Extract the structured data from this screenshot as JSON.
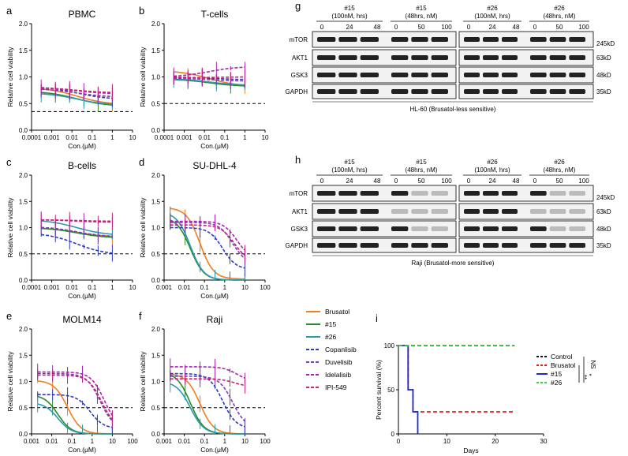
{
  "panels": [
    {
      "id": "pA",
      "label": "a",
      "title": "PBMC",
      "ylabel": "Relative cell viability",
      "xlabel": "Con.(μM)",
      "xscale": "log",
      "xticks": [
        "0.0001",
        "0.001",
        "0.01",
        "0.1",
        "1",
        "10"
      ],
      "xrange": [
        0.0001,
        10
      ],
      "yticks": [
        "0.0",
        "0.5",
        "1.0",
        "1.5",
        "2.0"
      ],
      "yrange": [
        0,
        2.0
      ],
      "dashed_y": 0.35
    },
    {
      "id": "pB",
      "label": "b",
      "title": "T-cells",
      "ylabel": "Relative cell viability",
      "xlabel": "Con.(μM)",
      "xscale": "log",
      "xticks": [
        "0.0001",
        "0.001",
        "0.01",
        "0.1",
        "1",
        "10"
      ],
      "xrange": [
        0.0001,
        10
      ],
      "yticks": [
        "0.0",
        "0.5",
        "1.0",
        "1.5",
        "2.0"
      ],
      "yrange": [
        0,
        2.0
      ],
      "dashed_y": 0.5
    },
    {
      "id": "pC",
      "label": "c",
      "title": "B-cells",
      "ylabel": "Relative cell viability",
      "xlabel": "Con.(μM)",
      "xscale": "log",
      "xticks": [
        "0.0001",
        "0.001",
        "0.01",
        "0.1",
        "1",
        "10"
      ],
      "xrange": [
        0.0001,
        10
      ],
      "yticks": [
        "0.0",
        "0.5",
        "1.0",
        "1.5",
        "2.0"
      ],
      "yrange": [
        0,
        2.0
      ],
      "dashed_y": 0.5
    },
    {
      "id": "pD",
      "label": "d",
      "title": "SU-DHL-4",
      "ylabel": "Relative cell viability",
      "xlabel": "Con.(μM)",
      "xscale": "log",
      "xticks": [
        "0.001",
        "0.01",
        "0.1",
        "1",
        "10",
        "100"
      ],
      "xrange": [
        0.001,
        100
      ],
      "yticks": [
        "0.0",
        "0.5",
        "1.0",
        "1.5",
        "2.0"
      ],
      "yrange": [
        0,
        2.0
      ],
      "dashed_y": 0.5
    },
    {
      "id": "pE",
      "label": "e",
      "title": "MOLM14",
      "ylabel": "Relative cell viability",
      "xlabel": "Con.(μM)",
      "xscale": "log",
      "xticks": [
        "0.001",
        "0.01",
        "0.1",
        "1",
        "10",
        "100"
      ],
      "xrange": [
        0.001,
        100
      ],
      "yticks": [
        "0.0",
        "0.5",
        "1.0",
        "1.5",
        "2.0"
      ],
      "yrange": [
        0,
        2.0
      ],
      "dashed_y": 0.5
    },
    {
      "id": "pF",
      "label": "f",
      "title": "Raji",
      "ylabel": "Relative cell viability",
      "xlabel": "Con.(μM)",
      "xscale": "log",
      "xticks": [
        "0.001",
        "0.01",
        "0.1",
        "1",
        "10",
        "100"
      ],
      "xrange": [
        0.001,
        100
      ],
      "yticks": [
        "0.0",
        "0.5",
        "1.0",
        "1.5",
        "2.0"
      ],
      "yrange": [
        0,
        2.0
      ],
      "dashed_y": 0.5
    }
  ],
  "chart_data": [
    {
      "type": "line",
      "panel": "a",
      "title": "PBMC",
      "xlabel": "Con.(μM)",
      "ylabel": "Relative cell viability",
      "series": [
        {
          "name": "Brusatol",
          "x": [
            0.0003,
            1
          ],
          "y": [
            0.8,
            0.48
          ]
        },
        {
          "name": "#15",
          "x": [
            0.0003,
            1
          ],
          "y": [
            0.73,
            0.45
          ]
        },
        {
          "name": "#26",
          "x": [
            0.0003,
            1
          ],
          "y": [
            0.7,
            0.47
          ]
        },
        {
          "name": "Copanlisib",
          "x": [
            0.0003,
            1
          ],
          "y": [
            0.82,
            0.58
          ]
        },
        {
          "name": "Duvelisib",
          "x": [
            0.0003,
            1
          ],
          "y": [
            0.78,
            0.62
          ]
        },
        {
          "name": "Idelalisib",
          "x": [
            0.0003,
            1
          ],
          "y": [
            0.8,
            0.68
          ]
        },
        {
          "name": "IPI-549",
          "x": [
            0.0003,
            1
          ],
          "y": [
            0.8,
            0.7
          ]
        }
      ]
    },
    {
      "type": "line",
      "panel": "b",
      "title": "T-cells",
      "xlabel": "Con.(μM)",
      "ylabel": "Relative cell viability",
      "series": [
        {
          "name": "Brusatol",
          "x": [
            0.0003,
            1
          ],
          "y": [
            1.12,
            0.82
          ]
        },
        {
          "name": "#15",
          "x": [
            0.0003,
            1
          ],
          "y": [
            0.96,
            0.82
          ]
        },
        {
          "name": "#26",
          "x": [
            0.0003,
            1
          ],
          "y": [
            0.97,
            0.84
          ]
        },
        {
          "name": "Copanlisib",
          "x": [
            0.0003,
            1
          ],
          "y": [
            1.0,
            0.95
          ]
        },
        {
          "name": "Duvelisib",
          "x": [
            0.0003,
            1
          ],
          "y": [
            0.98,
            0.92
          ]
        },
        {
          "name": "Idelalisib",
          "x": [
            0.0003,
            1
          ],
          "y": [
            1.0,
            1.2
          ]
        },
        {
          "name": "IPI-549",
          "x": [
            0.0003,
            1
          ],
          "y": [
            0.98,
            1.0
          ]
        }
      ]
    },
    {
      "type": "line",
      "panel": "c",
      "title": "B-cells",
      "xlabel": "Con.(μM)",
      "ylabel": "Relative cell viability",
      "series": [
        {
          "name": "Brusatol",
          "x": [
            0.0003,
            1
          ],
          "y": [
            1.0,
            0.82
          ]
        },
        {
          "name": "#15",
          "x": [
            0.0003,
            1
          ],
          "y": [
            1.0,
            0.8
          ]
        },
        {
          "name": "#26",
          "x": [
            0.0003,
            1
          ],
          "y": [
            1.15,
            0.85
          ]
        },
        {
          "name": "Copanlisib",
          "x": [
            0.0003,
            1
          ],
          "y": [
            0.9,
            0.48
          ]
        },
        {
          "name": "Duvelisib",
          "x": [
            0.0003,
            1
          ],
          "y": [
            1.02,
            0.82
          ]
        },
        {
          "name": "Idelalisib",
          "x": [
            0.0003,
            1
          ],
          "y": [
            1.15,
            1.1
          ]
        },
        {
          "name": "IPI-549",
          "x": [
            0.0003,
            1
          ],
          "y": [
            1.15,
            1.12
          ]
        }
      ]
    },
    {
      "type": "line",
      "panel": "d",
      "title": "SU-DHL-4",
      "xlabel": "Con.(μM)",
      "ylabel": "Relative cell viability",
      "series": [
        {
          "name": "Brusatol",
          "x": [
            0.002,
            10
          ],
          "y": [
            1.38,
            0.02
          ]
        },
        {
          "name": "#15",
          "x": [
            0.002,
            10
          ],
          "y": [
            1.2,
            0.0
          ]
        },
        {
          "name": "#26",
          "x": [
            0.002,
            10
          ],
          "y": [
            1.3,
            0.0
          ]
        },
        {
          "name": "Copanlisib",
          "x": [
            0.002,
            10
          ],
          "y": [
            1.0,
            0.2
          ]
        },
        {
          "name": "Duvelisib",
          "x": [
            0.002,
            10
          ],
          "y": [
            1.1,
            0.3
          ]
        },
        {
          "name": "Idelalisib",
          "x": [
            0.002,
            10
          ],
          "y": [
            1.12,
            0.4
          ]
        },
        {
          "name": "IPI-549",
          "x": [
            0.002,
            10
          ],
          "y": [
            1.05,
            0.35
          ]
        }
      ]
    },
    {
      "type": "line",
      "panel": "e",
      "title": "MOLM14",
      "xlabel": "Con.(μM)",
      "ylabel": "Relative cell viability",
      "series": [
        {
          "name": "Brusatol",
          "x": [
            0.002,
            10
          ],
          "y": [
            1.02,
            0.0
          ]
        },
        {
          "name": "#15",
          "x": [
            0.002,
            10
          ],
          "y": [
            0.75,
            0.0
          ]
        },
        {
          "name": "#26",
          "x": [
            0.002,
            10
          ],
          "y": [
            0.6,
            0.0
          ]
        },
        {
          "name": "Copanlisib",
          "x": [
            0.002,
            10
          ],
          "y": [
            0.75,
            0.1
          ]
        },
        {
          "name": "Duvelisib",
          "x": [
            0.002,
            10
          ],
          "y": [
            1.15,
            0.1
          ]
        },
        {
          "name": "Idelalisib",
          "x": [
            0.002,
            10
          ],
          "y": [
            1.18,
            0.1
          ]
        },
        {
          "name": "IPI-549",
          "x": [
            0.002,
            10
          ],
          "y": [
            1.12,
            0.1
          ]
        }
      ]
    },
    {
      "type": "line",
      "panel": "f",
      "title": "Raji",
      "xlabel": "Con.(μM)",
      "ylabel": "Relative cell viability",
      "series": [
        {
          "name": "Brusatol",
          "x": [
            0.002,
            10
          ],
          "y": [
            1.15,
            0.0
          ]
        },
        {
          "name": "#15",
          "x": [
            0.002,
            10
          ],
          "y": [
            1.18,
            0.0
          ]
        },
        {
          "name": "#26",
          "x": [
            0.002,
            10
          ],
          "y": [
            1.0,
            0.0
          ]
        },
        {
          "name": "Copanlisib",
          "x": [
            0.002,
            10
          ],
          "y": [
            1.15,
            0.1
          ]
        },
        {
          "name": "Duvelisib",
          "x": [
            0.002,
            10
          ],
          "y": [
            1.1,
            0.1
          ]
        },
        {
          "name": "Idelalisib",
          "x": [
            0.002,
            10
          ],
          "y": [
            1.28,
            1.0
          ]
        },
        {
          "name": "IPI-549",
          "x": [
            0.002,
            10
          ],
          "y": [
            1.05,
            0.9
          ]
        }
      ]
    },
    {
      "type": "line",
      "panel": "i",
      "title": "",
      "xlabel": "Days",
      "ylabel": "Percent survival (%)",
      "xlim": [
        0,
        30
      ],
      "ylim": [
        0,
        100
      ],
      "xticks": [
        "0",
        "10",
        "20",
        "30"
      ],
      "yticks": [
        "0",
        "50",
        "100"
      ],
      "series": [
        {
          "name": "Control",
          "x": [
            0,
            24
          ],
          "y": [
            100,
            100
          ]
        },
        {
          "name": "Brusatol",
          "x": [
            0,
            2,
            2,
            3,
            3,
            24
          ],
          "y": [
            100,
            100,
            50,
            50,
            25,
            25
          ]
        },
        {
          "name": "#15",
          "x": [
            0,
            2,
            2,
            3,
            3,
            4,
            4
          ],
          "y": [
            100,
            100,
            50,
            50,
            25,
            25,
            0
          ]
        },
        {
          "name": "#26",
          "x": [
            0,
            24
          ],
          "y": [
            100,
            100
          ]
        }
      ],
      "annotations": [
        "NS",
        "*",
        "**"
      ]
    }
  ],
  "legend": {
    "entries": [
      {
        "name": "Brusatol",
        "color": "#f07d1e",
        "dash": false
      },
      {
        "name": "#15",
        "color": "#2a8a2a",
        "dash": false
      },
      {
        "name": "#26",
        "color": "#2a9ab0",
        "dash": false
      },
      {
        "name": "Copanlisib",
        "color": "#2b3bbf",
        "dash": true
      },
      {
        "name": "Duvelisib",
        "color": "#7a3db8",
        "dash": true
      },
      {
        "name": "Idelalisib",
        "color": "#b01fb0",
        "dash": true
      },
      {
        "name": "IPI-549",
        "color": "#c8227a",
        "dash": true
      }
    ]
  },
  "blot_g": {
    "label": "g",
    "groups": [
      {
        "id": "#15",
        "condition": "(100nM, hrs)",
        "lanes": [
          "0",
          "24",
          "48"
        ]
      },
      {
        "id": "#15",
        "condition": "(48hrs, nM)",
        "lanes": [
          "0",
          "50",
          "100"
        ]
      },
      {
        "id": "#26",
        "condition": "(100nM, hrs)",
        "lanes": [
          "0",
          "24",
          "48"
        ]
      },
      {
        "id": "#26",
        "condition": "(48hrs, nM)",
        "lanes": [
          "0",
          "50",
          "100"
        ]
      }
    ],
    "rows": [
      "mTOR",
      "AKT1",
      "GSK3",
      "GAPDH"
    ],
    "kd": [
      "245kD",
      "63kD",
      "48kD",
      "35kD"
    ],
    "caption": "HL-60 (Brusatol-less sensitive)"
  },
  "blot_h": {
    "label": "h",
    "groups": [
      {
        "id": "#15",
        "condition": "(100nM, hrs)",
        "lanes": [
          "0",
          "24",
          "48"
        ]
      },
      {
        "id": "#15",
        "condition": "(48hrs, nM)",
        "lanes": [
          "0",
          "50",
          "100"
        ]
      },
      {
        "id": "#26",
        "condition": "(100nM, hrs)",
        "lanes": [
          "0",
          "24",
          "48"
        ]
      },
      {
        "id": "#26",
        "condition": "(48hrs, nM)",
        "lanes": [
          "0",
          "50",
          "100"
        ]
      }
    ],
    "rows": [
      "mTOR",
      "AKT1",
      "GSK3",
      "GAPDH"
    ],
    "kd": [
      "245kD",
      "63kD",
      "48kD",
      "35kD"
    ],
    "caption": "Raji (Brusatol-more sensitive)"
  },
  "survival_legend": {
    "label": "i",
    "entries": [
      {
        "name": "Control",
        "color": "#111111"
      },
      {
        "name": "Brusatol",
        "color": "#e02020"
      },
      {
        "name": "#15",
        "color": "#1a2bd0"
      },
      {
        "name": "#26",
        "color": "#3cd23c"
      }
    ]
  }
}
